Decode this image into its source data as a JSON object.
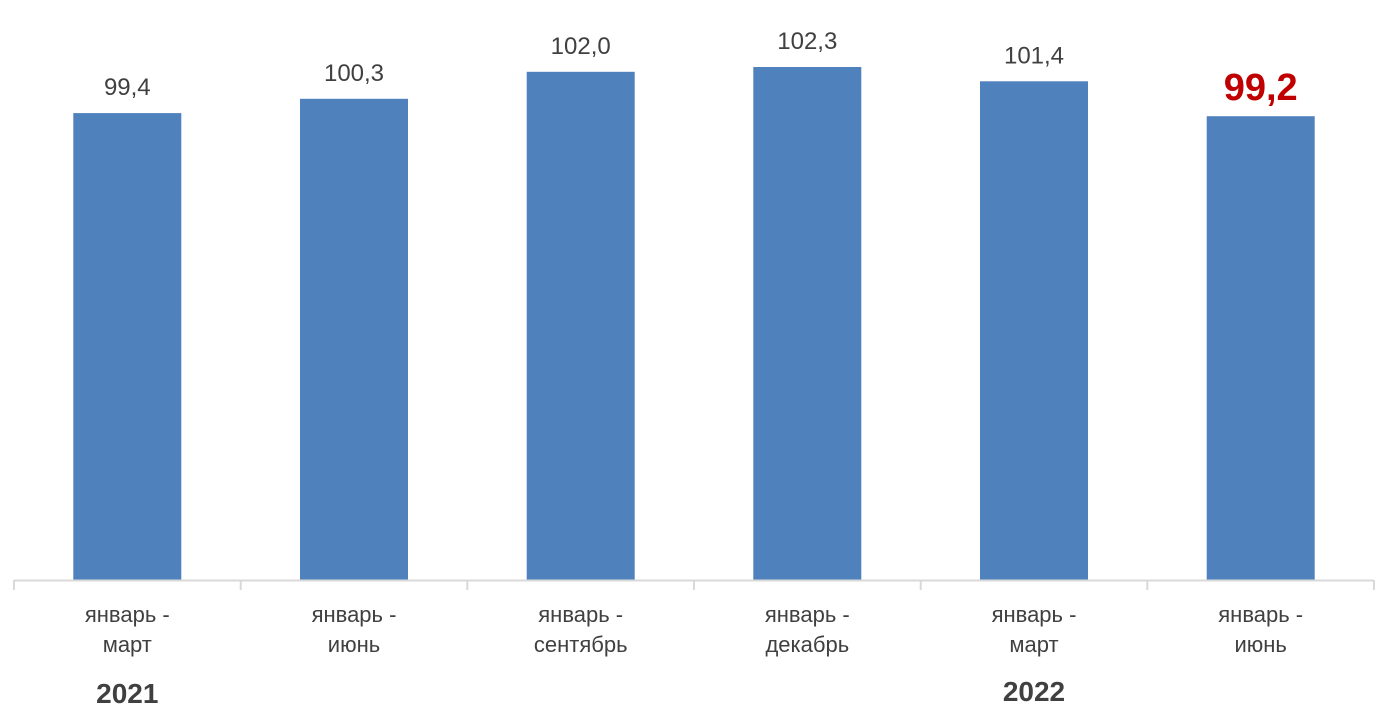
{
  "chart_data": {
    "type": "bar",
    "categories": [
      [
        "январь -",
        "март"
      ],
      [
        "январь -",
        "июнь"
      ],
      [
        "январь -",
        "сентябрь"
      ],
      [
        "январь -",
        "декабрь"
      ],
      [
        "январь -",
        "март"
      ],
      [
        "январь -",
        "июнь"
      ]
    ],
    "values": [
      99.4,
      100.3,
      102.0,
      102.3,
      101.4,
      99.2
    ],
    "value_labels": [
      "99,4",
      "100,3",
      "102,0",
      "102,3",
      "101,4",
      "99,2"
    ],
    "highlight_index": 5,
    "groups": [
      {
        "label": "2021",
        "start": 0,
        "end": 3
      },
      {
        "label": "2022",
        "start": 4,
        "end": 5
      }
    ],
    "ylim": [
      70,
      104
    ],
    "grid": false,
    "legend": "none",
    "colors": {
      "bar": "#4f81bd",
      "axis": "#d9d9d9",
      "text": "#404040",
      "highlight_text": "#c00000"
    }
  }
}
